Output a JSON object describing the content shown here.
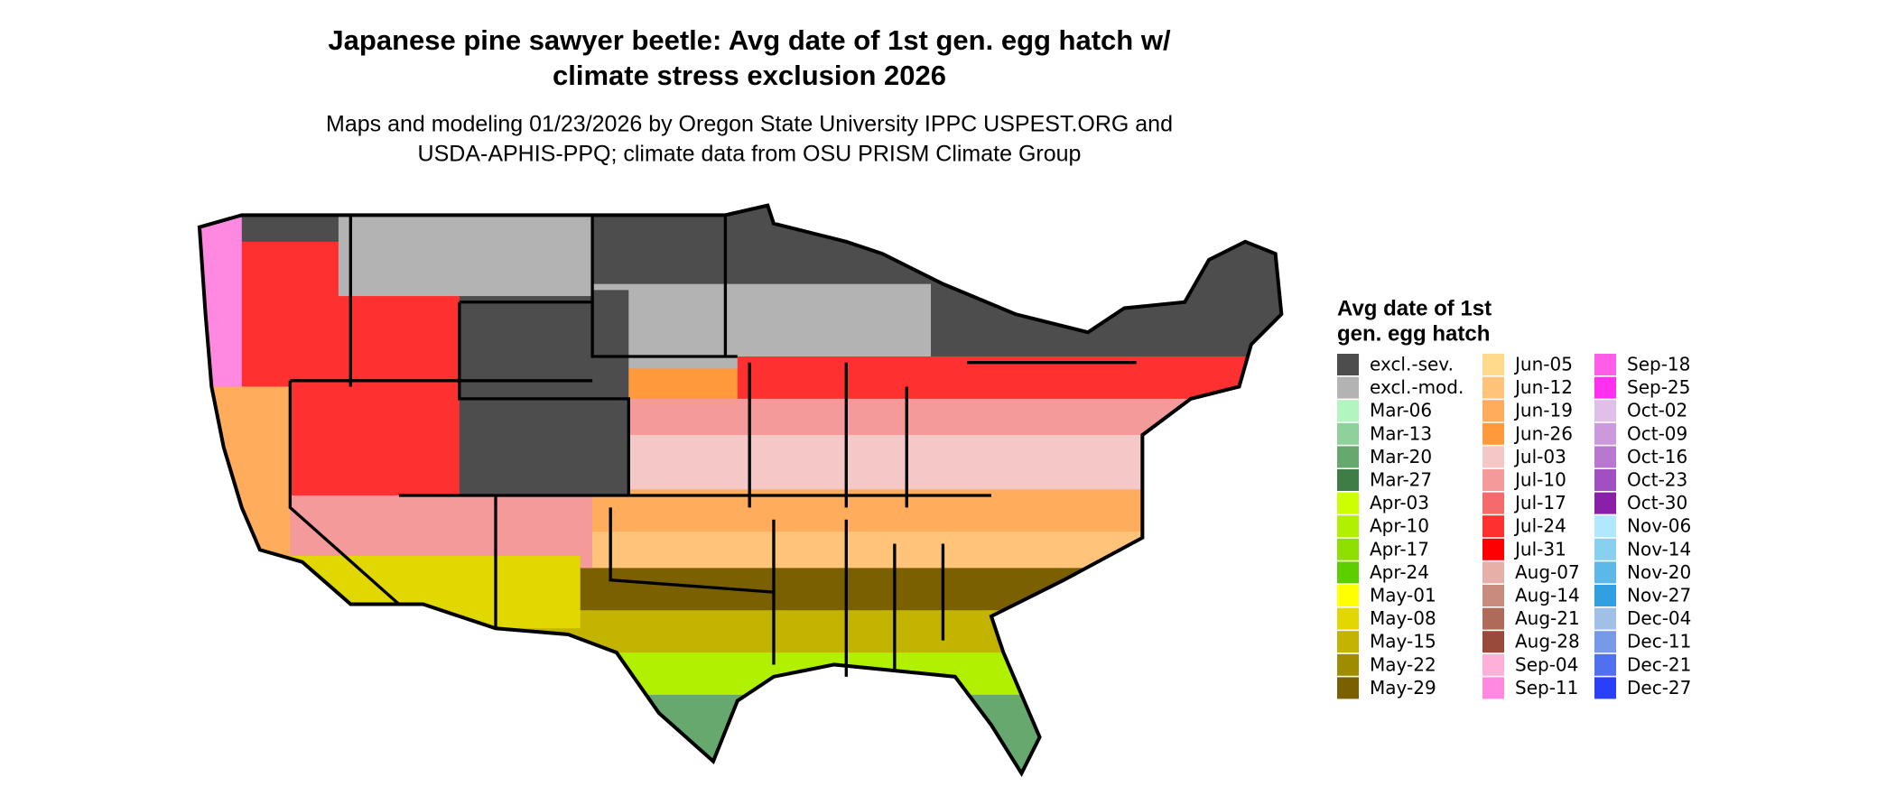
{
  "title": [
    "Japanese pine sawyer beetle: Avg date of 1st gen. egg hatch w/",
    "climate stress exclusion 2026"
  ],
  "subtitle": [
    "Maps and modeling 01/23/2026 by Oregon State University IPPC USPEST.ORG and",
    "USDA-APHIS-PPQ; climate data from OSU PRISM Climate Group"
  ],
  "legend": {
    "title": [
      "Avg date of 1st",
      "gen. egg hatch"
    ],
    "items": [
      {
        "label": "excl.-sev.",
        "color": "#4d4d4d"
      },
      {
        "label": "excl.-mod.",
        "color": "#b3b3b3"
      },
      {
        "label": "Mar-06",
        "color": "#b3f5c0"
      },
      {
        "label": "Mar-13",
        "color": "#8fd19a"
      },
      {
        "label": "Mar-20",
        "color": "#66a86e"
      },
      {
        "label": "Mar-27",
        "color": "#3e7d45"
      },
      {
        "label": "Apr-03",
        "color": "#ccff00"
      },
      {
        "label": "Apr-10",
        "color": "#b0f000"
      },
      {
        "label": "Apr-17",
        "color": "#8ee000"
      },
      {
        "label": "Apr-24",
        "color": "#5ccf00"
      },
      {
        "label": "May-01",
        "color": "#ffff00"
      },
      {
        "label": "May-08",
        "color": "#e0d800"
      },
      {
        "label": "May-15",
        "color": "#c2b400"
      },
      {
        "label": "May-22",
        "color": "#a08c00"
      },
      {
        "label": "May-29",
        "color": "#7a6000"
      },
      {
        "label": "Jun-05",
        "color": "#ffd98c"
      },
      {
        "label": "Jun-12",
        "color": "#ffc47a"
      },
      {
        "label": "Jun-19",
        "color": "#ffad5c"
      },
      {
        "label": "Jun-26",
        "color": "#ff9a3c"
      },
      {
        "label": "Jul-03",
        "color": "#f5c8c8"
      },
      {
        "label": "Jul-10",
        "color": "#f59a9a"
      },
      {
        "label": "Jul-17",
        "color": "#f56a6a"
      },
      {
        "label": "Jul-24",
        "color": "#ff3030"
      },
      {
        "label": "Jul-31",
        "color": "#ff0000"
      },
      {
        "label": "Aug-07",
        "color": "#e6b0a8"
      },
      {
        "label": "Aug-14",
        "color": "#c88c7e"
      },
      {
        "label": "Aug-21",
        "color": "#b06a5a"
      },
      {
        "label": "Aug-28",
        "color": "#9a4a3a"
      },
      {
        "label": "Sep-04",
        "color": "#ffb0d8"
      },
      {
        "label": "Sep-11",
        "color": "#ff88e0"
      },
      {
        "label": "Sep-18",
        "color": "#ff5ce8"
      },
      {
        "label": "Sep-25",
        "color": "#ff30f0"
      },
      {
        "label": "Oct-02",
        "color": "#e0c0e8"
      },
      {
        "label": "Oct-09",
        "color": "#cc99dd"
      },
      {
        "label": "Oct-16",
        "color": "#b878d0"
      },
      {
        "label": "Oct-23",
        "color": "#a050c0"
      },
      {
        "label": "Oct-30",
        "color": "#8a20a8"
      },
      {
        "label": "Nov-06",
        "color": "#b0e8ff"
      },
      {
        "label": "Nov-14",
        "color": "#88d0f0"
      },
      {
        "label": "Nov-20",
        "color": "#5cb8e8"
      },
      {
        "label": "Nov-27",
        "color": "#30a0e0"
      },
      {
        "label": "Dec-04",
        "color": "#a0c0e8"
      },
      {
        "label": "Dec-11",
        "color": "#7898e8"
      },
      {
        "label": "Dec-21",
        "color": "#5070f0"
      },
      {
        "label": "Dec-27",
        "color": "#2a40f8"
      }
    ]
  }
}
